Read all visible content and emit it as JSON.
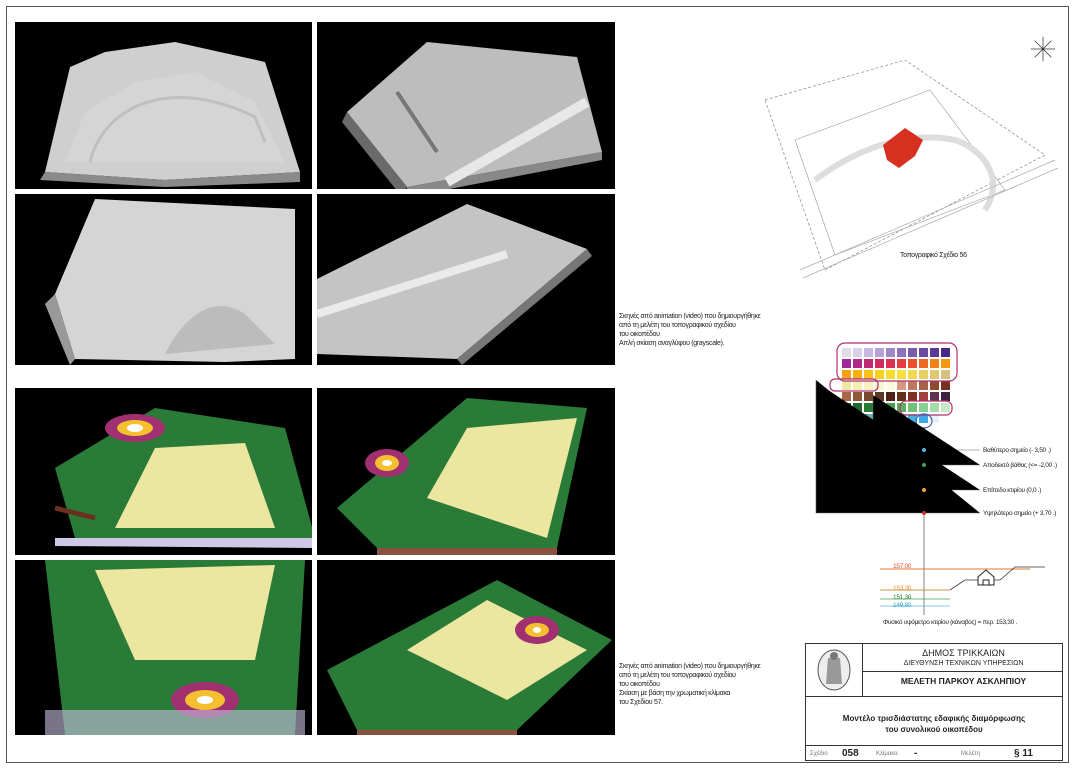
{
  "captions": {
    "grayscale_lines": [
      "Σκηνές από animation (video) που δημιουργήθηκε",
      "από τη μελέτη του τοπογραφικού σχεδίου",
      "του οικοπέδου",
      "Απλή σκίαση αναγλύφου (grayscale)."
    ],
    "color_lines": [
      "Σκηνές από animation (video) που δημιουργήθηκε",
      "από τη μελέτη του τοπογραφικού σχεδίου",
      "του οικοπέδου",
      "Σκίαση με βάση την χρωματική κλίμακα",
      "του Σχεδίου 57."
    ]
  },
  "site_plan": {
    "caption": "Τοπογραφικό Σχέδιο 56"
  },
  "legend": {
    "deepest": "Βαθύτερο σημείο (- 3,50 .)",
    "allowed_depth": "Αποδεκτό βάθος (<= -2,00 .)",
    "ground_level": "Επίπεδο κτιρίου (0,0 .)",
    "highest": "Υψηλότερο σημείο (+ 3,70 .)"
  },
  "section": {
    "levels": [
      "157,00",
      "153,30",
      "151,30",
      "149,80"
    ],
    "natural_level": "Φυσικό υψόμετρο κτιρίου (κάναβος) = περ. 153,30 ."
  },
  "colors": {
    "red_building": "#d8301f",
    "grid_rows": [
      [
        "#e0dde8",
        "#d8d0e6",
        "#c8b8e0",
        "#b8a0d8",
        "#a088c8",
        "#8f70bc",
        "#7a5cab",
        "#6a4aa0",
        "#5a3a94",
        "#4a2a88"
      ],
      [
        "#a0289a",
        "#b02888",
        "#c02874",
        "#d02a60",
        "#dc3050",
        "#e43c40",
        "#ec5030",
        "#f06820",
        "#f48018",
        "#f89810"
      ],
      [
        "#f8a010",
        "#f8b010",
        "#f8c018",
        "#f8d020",
        "#f8dc30",
        "#f8e040",
        "#f0d850",
        "#e8d060",
        "#e0c870",
        "#d8c080"
      ],
      [
        "#f0e8a0",
        "#f4eeb0",
        "#f8f0c0",
        "#f8f4d0",
        "#fcf8e0",
        "#d89880",
        "#c07860",
        "#a86048",
        "#904830",
        "#783020"
      ],
      [
        "#a86848",
        "#905838",
        "#784830",
        "#603828",
        "#502018",
        "#603018",
        "#803020",
        "#a04040",
        "#603050",
        "#402040"
      ],
      [
        "#1a5a28",
        "#206830",
        "#287838",
        "#308840",
        "#40a050",
        "#58b060",
        "#70c078",
        "#88d090",
        "#a0dca8",
        "#c8e8c8"
      ],
      [
        "#607080",
        "#7888a0",
        "#6aaab0",
        "#60b8c0",
        "#58c0d0",
        "#50b8d8",
        "#48b0e0",
        "#40a8e8",
        "#e8f0f8",
        "#ffffff"
      ]
    ]
  },
  "title_block": {
    "org": "ΔΗΜΟΣ ΤΡΙΚΚΑΙΩΝ",
    "department": "ΔΙΕΥΘΥΝΣΗ ΤΕΧΝΙΚΩΝ ΥΠΗΡΕΣΙΩΝ",
    "project": "ΜΕΛΕΤΗ ΠΑΡΚΟΥ ΑΣΚΛΗΠΙΟΥ",
    "drawing_title_1": "Μοντέλο τρισδιάστατης εδαφικής διαμόρφωσης",
    "drawing_title_2": "του συνολικού οικοπέδου",
    "sheet_label": "Σχέδιο",
    "sheet_value": "058",
    "scale_label": "Κλίμακα",
    "scale_value": "-",
    "study_label": "Μελέτη",
    "study_value": "§ 11"
  }
}
